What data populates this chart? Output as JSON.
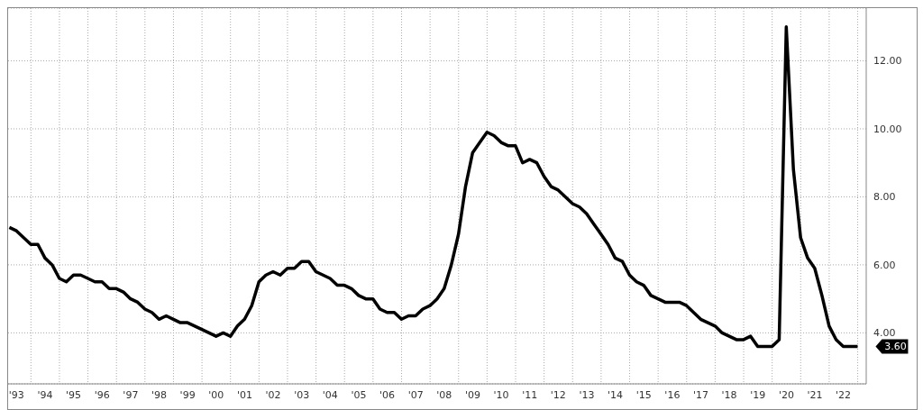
{
  "chart_data": {
    "type": "line",
    "x": [
      "1993-03-31",
      "1993-06-30",
      "1993-09-30",
      "1993-12-31",
      "1994-03-31",
      "1994-06-30",
      "1994-09-30",
      "1994-12-31",
      "1995-03-31",
      "1995-06-30",
      "1995-09-30",
      "1995-12-31",
      "1996-03-31",
      "1996-06-30",
      "1996-09-30",
      "1996-12-31",
      "1997-03-31",
      "1997-06-30",
      "1997-09-30",
      "1997-12-31",
      "1998-03-31",
      "1998-06-30",
      "1998-09-30",
      "1998-12-31",
      "1999-03-31",
      "1999-06-30",
      "1999-09-30",
      "1999-12-31",
      "2000-03-31",
      "2000-06-30",
      "2000-09-30",
      "2000-12-31",
      "2001-03-31",
      "2001-06-30",
      "2001-09-30",
      "2001-12-31",
      "2002-03-31",
      "2002-06-30",
      "2002-09-30",
      "2002-12-31",
      "2003-03-31",
      "2003-06-30",
      "2003-09-30",
      "2003-12-31",
      "2004-03-31",
      "2004-06-30",
      "2004-09-30",
      "2004-12-31",
      "2005-03-31",
      "2005-06-30",
      "2005-09-30",
      "2005-12-31",
      "2006-03-31",
      "2006-06-30",
      "2006-09-30",
      "2006-12-31",
      "2007-03-31",
      "2007-06-30",
      "2007-09-30",
      "2007-12-31",
      "2008-03-31",
      "2008-06-30",
      "2008-09-30",
      "2008-12-31",
      "2009-03-31",
      "2009-06-30",
      "2009-09-30",
      "2009-12-31",
      "2010-03-31",
      "2010-06-30",
      "2010-09-30",
      "2010-12-31",
      "2011-03-31",
      "2011-06-30",
      "2011-09-30",
      "2011-12-31",
      "2012-03-31",
      "2012-06-30",
      "2012-09-30",
      "2012-12-31",
      "2013-03-31",
      "2013-06-30",
      "2013-09-30",
      "2013-12-31",
      "2014-03-31",
      "2014-06-30",
      "2014-09-30",
      "2014-12-31",
      "2015-03-31",
      "2015-06-30",
      "2015-09-30",
      "2015-12-31",
      "2016-03-31",
      "2016-06-30",
      "2016-09-30",
      "2016-12-31",
      "2017-03-31",
      "2017-06-30",
      "2017-09-30",
      "2017-12-31",
      "2018-03-31",
      "2018-06-30",
      "2018-09-30",
      "2018-12-31",
      "2019-03-31",
      "2019-06-30",
      "2019-09-30",
      "2019-12-31",
      "2020-03-31",
      "2020-06-30",
      "2020-09-30",
      "2020-12-31",
      "2021-03-31",
      "2021-06-30",
      "2021-09-30",
      "2021-12-31",
      "2022-03-31",
      "2022-06-30",
      "2022-09-30",
      "2022-12-31"
    ],
    "series": [
      {
        "color": "#000000",
        "values": [
          7.1,
          7.0,
          6.8,
          6.6,
          6.6,
          6.2,
          6.0,
          5.6,
          5.5,
          5.7,
          5.7,
          5.6,
          5.5,
          5.5,
          5.3,
          5.3,
          5.2,
          5.0,
          4.9,
          4.7,
          4.6,
          4.4,
          4.5,
          4.4,
          4.3,
          4.3,
          4.2,
          4.1,
          4.0,
          3.9,
          4.0,
          3.9,
          4.2,
          4.4,
          4.8,
          5.5,
          5.7,
          5.8,
          5.7,
          5.9,
          5.9,
          6.1,
          6.1,
          5.8,
          5.7,
          5.6,
          5.4,
          5.4,
          5.3,
          5.1,
          5.0,
          5.0,
          4.7,
          4.6,
          4.6,
          4.4,
          4.5,
          4.5,
          4.7,
          4.8,
          5.0,
          5.3,
          6.0,
          6.9,
          8.3,
          9.3,
          9.6,
          9.9,
          9.8,
          9.6,
          9.5,
          9.5,
          9.0,
          9.1,
          9.0,
          8.6,
          8.3,
          8.2,
          8.0,
          7.8,
          7.7,
          7.5,
          7.2,
          6.9,
          6.6,
          6.2,
          6.1,
          5.7,
          5.5,
          5.4,
          5.1,
          5.0,
          4.9,
          4.9,
          4.9,
          4.8,
          4.6,
          4.4,
          4.3,
          4.2,
          4.0,
          3.9,
          3.8,
          3.8,
          3.9,
          3.6,
          3.6,
          3.6,
          3.8,
          13.0,
          8.8,
          6.8,
          6.2,
          5.9,
          5.1,
          4.2,
          3.8,
          3.6,
          3.6,
          3.6
        ]
      }
    ],
    "xlim": [
      "1993-03-15",
      "2023-04-20"
    ],
    "xticks": [
      {
        "value": "1993-07-01",
        "label": "'93"
      },
      {
        "value": "1994-07-01",
        "label": "'94"
      },
      {
        "value": "1995-07-01",
        "label": "'95"
      },
      {
        "value": "1996-07-01",
        "label": "'96"
      },
      {
        "value": "1997-07-01",
        "label": "'97"
      },
      {
        "value": "1998-07-01",
        "label": "'98"
      },
      {
        "value": "1999-07-01",
        "label": "'99"
      },
      {
        "value": "2000-07-01",
        "label": "'00"
      },
      {
        "value": "2001-07-01",
        "label": "'01"
      },
      {
        "value": "2002-07-01",
        "label": "'02"
      },
      {
        "value": "2003-07-01",
        "label": "'03"
      },
      {
        "value": "2004-07-01",
        "label": "'04"
      },
      {
        "value": "2005-07-01",
        "label": "'05"
      },
      {
        "value": "2006-07-01",
        "label": "'06"
      },
      {
        "value": "2007-07-01",
        "label": "'07"
      },
      {
        "value": "2008-07-01",
        "label": "'08"
      },
      {
        "value": "2009-07-01",
        "label": "'09"
      },
      {
        "value": "2010-07-01",
        "label": "'10"
      },
      {
        "value": "2011-07-01",
        "label": "'11"
      },
      {
        "value": "2012-07-01",
        "label": "'12"
      },
      {
        "value": "2013-07-01",
        "label": "'13"
      },
      {
        "value": "2014-07-01",
        "label": "'14"
      },
      {
        "value": "2015-07-01",
        "label": "'15"
      },
      {
        "value": "2016-07-01",
        "label": "'16"
      },
      {
        "value": "2017-07-01",
        "label": "'17"
      },
      {
        "value": "2018-07-01",
        "label": "'18"
      },
      {
        "value": "2019-07-01",
        "label": "'19"
      },
      {
        "value": "2020-07-01",
        "label": "'20"
      },
      {
        "value": "2021-07-01",
        "label": "'21"
      },
      {
        "value": "2022-07-01",
        "label": "'22"
      },
      {
        "value": "1994-01-01",
        "label": null
      },
      {
        "value": "1995-01-01",
        "label": null
      },
      {
        "value": "1996-01-01",
        "label": null
      },
      {
        "value": "1997-01-01",
        "label": null
      },
      {
        "value": "1998-01-01",
        "label": null
      },
      {
        "value": "1999-01-01",
        "label": null
      },
      {
        "value": "2000-01-01",
        "label": null
      },
      {
        "value": "2001-01-01",
        "label": null
      },
      {
        "value": "2002-01-01",
        "label": null
      },
      {
        "value": "2003-01-01",
        "label": null
      },
      {
        "value": "2004-01-01",
        "label": null
      },
      {
        "value": "2005-01-01",
        "label": null
      },
      {
        "value": "2006-01-01",
        "label": null
      },
      {
        "value": "2007-01-01",
        "label": null
      },
      {
        "value": "2008-01-01",
        "label": null
      },
      {
        "value": "2009-01-01",
        "label": null
      },
      {
        "value": "2010-01-01",
        "label": null
      },
      {
        "value": "2011-01-01",
        "label": null
      },
      {
        "value": "2012-01-01",
        "label": null
      },
      {
        "value": "2013-01-01",
        "label": null
      },
      {
        "value": "2014-01-01",
        "label": null
      },
      {
        "value": "2015-01-01",
        "label": null
      },
      {
        "value": "2016-01-01",
        "label": null
      },
      {
        "value": "2017-01-01",
        "label": null
      },
      {
        "value": "2018-01-01",
        "label": null
      },
      {
        "value": "2019-01-01",
        "label": null
      },
      {
        "value": "2020-01-01",
        "label": null
      },
      {
        "value": "2021-01-01",
        "label": null
      },
      {
        "value": "2022-01-01",
        "label": null
      },
      {
        "value": "2023-01-01",
        "label": null
      }
    ],
    "ylim": [
      2.5,
      13.55
    ],
    "yticks": [
      {
        "value": 4,
        "label": "4.00"
      },
      {
        "value": 6,
        "label": "6.00"
      },
      {
        "value": 8,
        "label": "8.00"
      },
      {
        "value": 10,
        "label": "10.00"
      },
      {
        "value": 12,
        "label": "12.00"
      }
    ],
    "grid": true,
    "annotations": [
      {
        "text": "3.60",
        "x": "2022-12-31",
        "y": 3.6
      }
    ]
  }
}
